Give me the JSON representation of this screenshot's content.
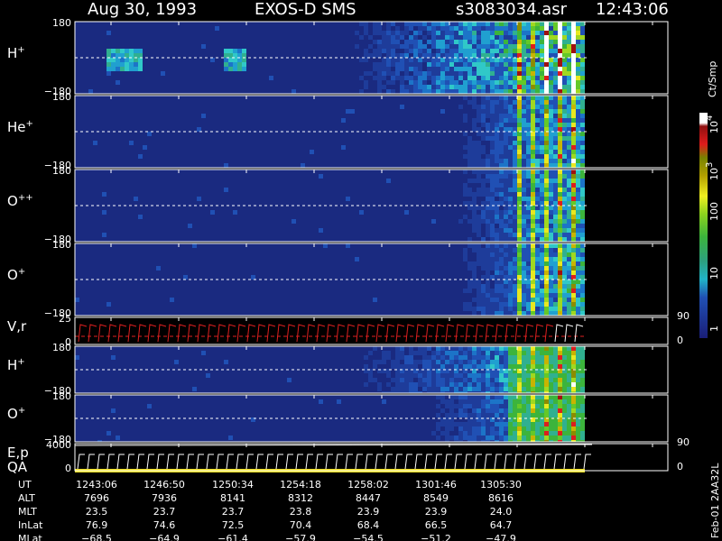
{
  "header": {
    "date": "Aug 30, 1993",
    "instrument": "EXOS-D SMS",
    "file": "s3083034.asr",
    "time": "12:43:06"
  },
  "panels": [
    {
      "label": "H",
      "sup": "+",
      "top": "180",
      "bottom": "−180"
    },
    {
      "label": "He",
      "sup": "+",
      "top": "180",
      "bottom": "−180"
    },
    {
      "label": "O",
      "sup": "++",
      "top": "180",
      "bottom": "−180"
    },
    {
      "label": "O",
      "sup": "+",
      "top": "180",
      "bottom": "−180"
    },
    {
      "label": "V,r",
      "top": "25",
      "bottom": "0",
      "right_top": "90",
      "right_bottom": "0"
    },
    {
      "label": "H",
      "sup": "+",
      "top": "180",
      "bottom": "−180"
    },
    {
      "label": "O",
      "sup": "+",
      "top": "180",
      "bottom": "−180"
    },
    {
      "label": "E,p",
      "label2": "QA",
      "top": "4000",
      "bottom": "0",
      "right_top": "90",
      "right_bottom": "0"
    }
  ],
  "colorbar": {
    "unit": "Ct/Smp",
    "ticks": [
      {
        "base": "10",
        "sup": "4"
      },
      {
        "base": "10",
        "sup": "3"
      },
      {
        "base": "100"
      },
      {
        "base": "10"
      },
      {
        "base": "1"
      }
    ]
  },
  "table": {
    "rows": [
      [
        "UT",
        "1243:06",
        "1246:50",
        "1250:34",
        "1254:18",
        "1258:02",
        "1301:46",
        "1305:30"
      ],
      [
        "ALT",
        "7696",
        "7936",
        "8141",
        "8312",
        "8447",
        "8549",
        "8616"
      ],
      [
        "MLT",
        "23.5",
        "23.7",
        "23.7",
        "23.8",
        "23.9",
        "23.9",
        "24.0"
      ],
      [
        "InLat",
        "76.9",
        "74.6",
        "72.5",
        "70.4",
        "68.4",
        "66.5",
        "64.7"
      ],
      [
        "MLat",
        "−68.5",
        "−64.9",
        "−61.4",
        "−57.9",
        "−54.5",
        "−51.2",
        "−47.9"
      ]
    ]
  },
  "footer": "Feb-01 2AA32L"
}
